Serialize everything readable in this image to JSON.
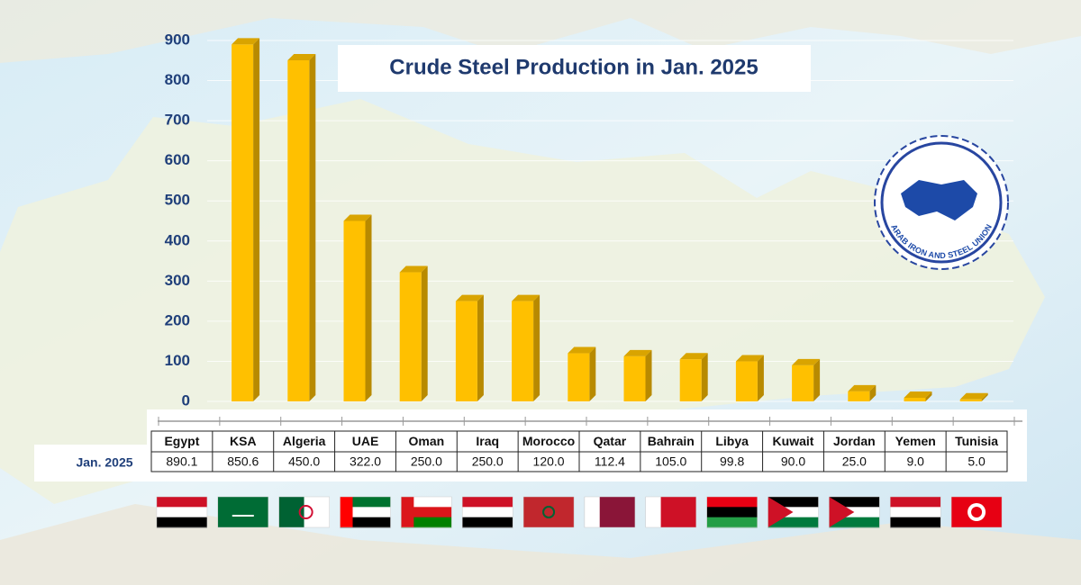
{
  "chart_data": {
    "type": "bar",
    "title": "Crude Steel Production in Jan. 2025",
    "categories": [
      "Egypt",
      "KSA",
      "Algeria",
      "UAE",
      "Oman",
      "Iraq",
      "Morocco",
      "Qatar",
      "Bahrain",
      "Libya",
      "Kuwait",
      "Jordan",
      "Yemen",
      "Tunisia"
    ],
    "series": [
      {
        "name": "Jan. 2025",
        "color": "#ffc000",
        "values": [
          890.1,
          850.6,
          450.0,
          322.0,
          250.0,
          250.0,
          120.0,
          112.4,
          105.0,
          99.8,
          90.0,
          25.0,
          9.0,
          5.0
        ],
        "value_labels": [
          "890.1",
          "850.6",
          "450.0",
          "322.0",
          "250.0",
          "250.0",
          "120.0",
          "112.4",
          "105.0",
          "99.8",
          "90.0",
          "25.0",
          "9.0",
          "5.0"
        ]
      }
    ],
    "ylim": [
      0,
      900
    ],
    "yticks": [
      0,
      100,
      200,
      300,
      400,
      500,
      600,
      700,
      800,
      900
    ],
    "grid": true
  },
  "logo": {
    "text": "ARAB IRON AND STEEL UNION"
  }
}
